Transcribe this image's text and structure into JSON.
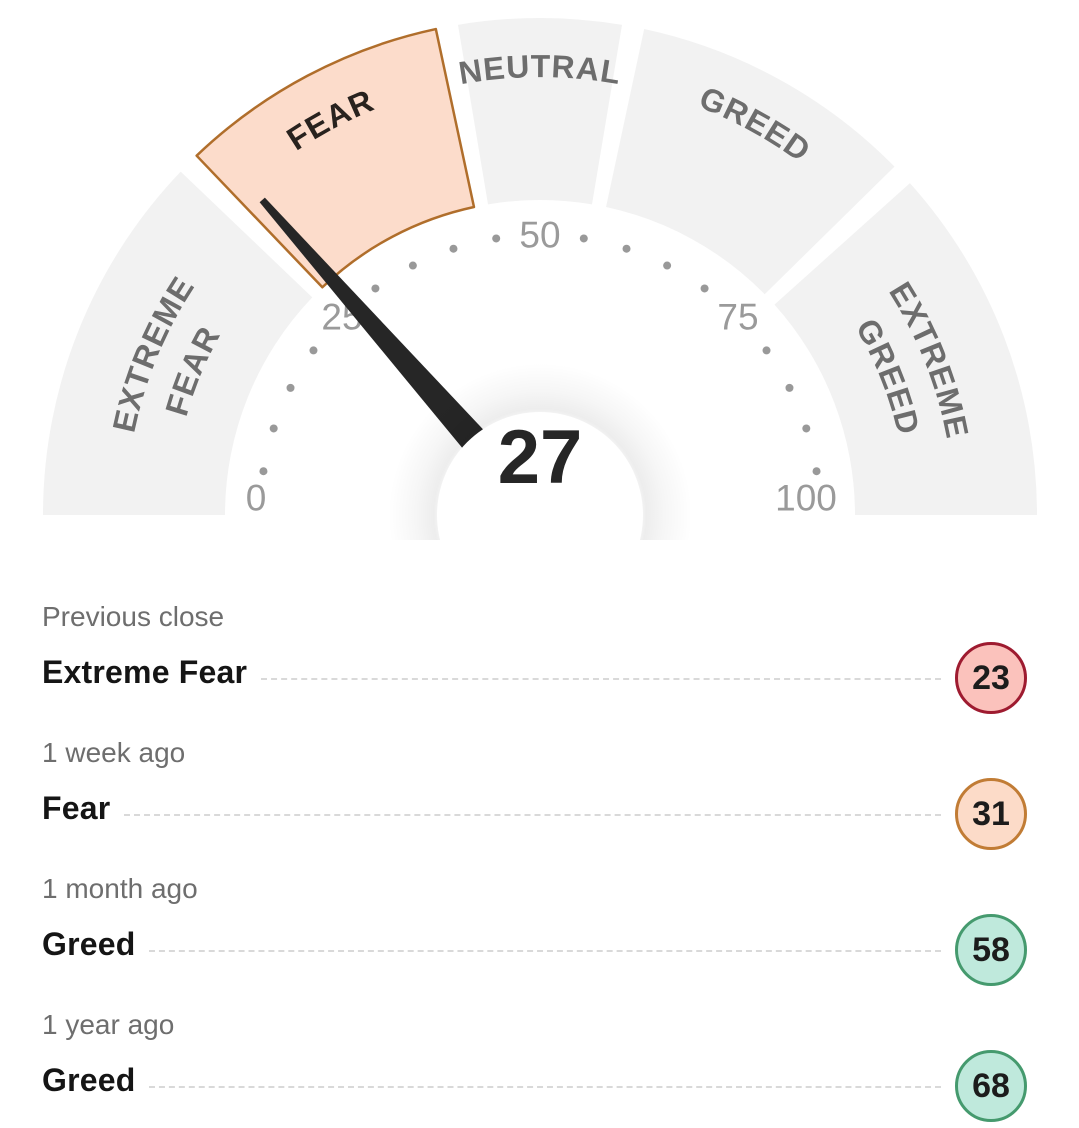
{
  "page": {
    "background": "#ffffff"
  },
  "chart_data": {
    "type": "gauge",
    "min": 0,
    "max": 100,
    "value": 27,
    "current_sentiment": "Fear",
    "needle_color": "#262626",
    "value_color": "#262626",
    "tick_values": [
      "0",
      "25",
      "50",
      "75",
      "100"
    ],
    "tick_label_color": "#9a9a9a",
    "dot_interval": 5,
    "dot_color": "#999999",
    "segments": [
      {
        "label": "EXTREME FEAR",
        "lines": [
          "EXTREME",
          "FEAR"
        ],
        "from": 0,
        "to": 25,
        "highlighted": false
      },
      {
        "label": "FEAR",
        "lines": [
          "FEAR"
        ],
        "from": 25,
        "to": 44,
        "highlighted": true
      },
      {
        "label": "NEUTRAL",
        "lines": [
          "NEUTRAL"
        ],
        "from": 44,
        "to": 56,
        "highlighted": false
      },
      {
        "label": "GREED",
        "lines": [
          "GREED"
        ],
        "from": 56,
        "to": 76,
        "highlighted": false
      },
      {
        "label": "EXTREME GREED",
        "lines": [
          "EXTREME",
          "GREED"
        ],
        "from": 76,
        "to": 100,
        "highlighted": false
      }
    ],
    "segment_colors": {
      "default_fill": "#f2f2f2",
      "default_label": "#6d6d6d",
      "highlight_fill": "#fcdccb",
      "highlight_stroke": "#b06e2b",
      "highlight_label": "#28221e"
    }
  },
  "history": {
    "rows": [
      {
        "period": "Previous close",
        "label": "Extreme Fear",
        "value": "23",
        "sentiment": "extreme-fear"
      },
      {
        "period": "1 week ago",
        "label": "Fear",
        "value": "31",
        "sentiment": "fear"
      },
      {
        "period": "1 month ago",
        "label": "Greed",
        "value": "58",
        "sentiment": "greed"
      },
      {
        "period": "1 year ago",
        "label": "Greed",
        "value": "68",
        "sentiment": "greed"
      }
    ],
    "badge_styles": {
      "extreme-fear": {
        "bg": "#fbc2bc",
        "border": "#9e1b30"
      },
      "fear": {
        "bg": "#fcdbc8",
        "border": "#c17c35"
      },
      "greed": {
        "bg": "#bfe9dc",
        "border": "#459a6e"
      }
    },
    "leader_color": "#d9d9d9"
  }
}
